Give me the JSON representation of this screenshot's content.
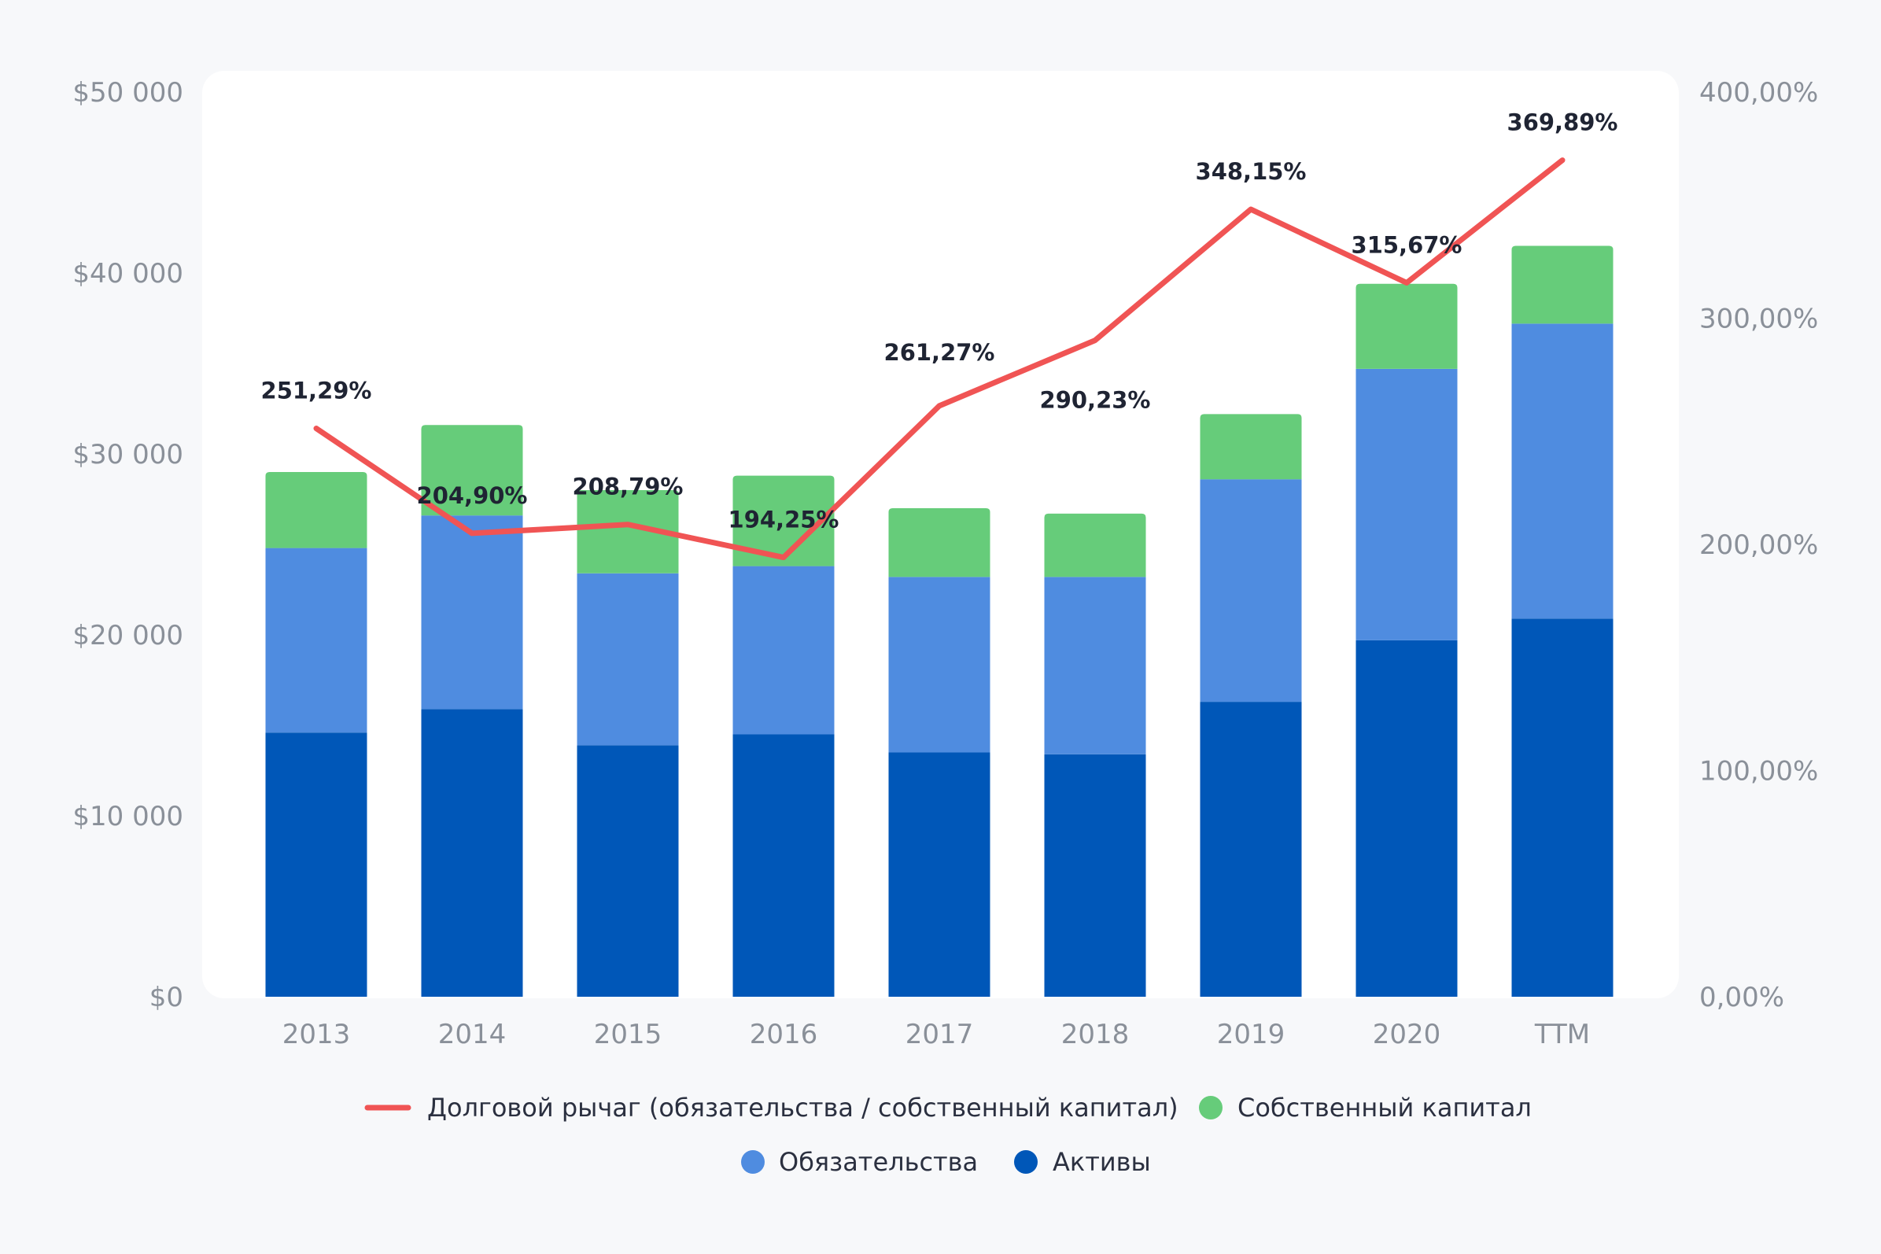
{
  "chart_data": {
    "type": "bar",
    "stacked": true,
    "categories": [
      "2013",
      "2014",
      "2015",
      "2016",
      "2017",
      "2018",
      "2019",
      "2020",
      "TTM"
    ],
    "series": [
      {
        "name": "Активы",
        "kind": "bar",
        "color": "#0057b8",
        "values": [
          14600,
          15900,
          13900,
          14500,
          13500,
          13400,
          16300,
          19700,
          20900
        ]
      },
      {
        "name": "Обязательства",
        "kind": "bar",
        "color": "#4f8ce0",
        "values": [
          10200,
          10700,
          9500,
          9300,
          9700,
          9800,
          12300,
          15000,
          16300
        ]
      },
      {
        "name": "Собственный капитал",
        "kind": "bar",
        "color": "#66cc7a",
        "values": [
          4200,
          5000,
          4600,
          5000,
          3800,
          3500,
          3600,
          4700,
          4300
        ]
      },
      {
        "name": "Долговой рычаг (обязательства / собственный капитал)",
        "kind": "line",
        "axis": "right",
        "color": "#f05454",
        "values": [
          251.29,
          204.9,
          208.79,
          194.25,
          261.27,
          290.23,
          348.15,
          315.67,
          369.89
        ],
        "labels": [
          "251,29%",
          "204,90%",
          "208,79%",
          "194,25%",
          "261,27%",
          "290,23%",
          "348,15%",
          "315,67%",
          "369,89%"
        ]
      }
    ],
    "y_left": {
      "ylim": [
        0,
        50000
      ],
      "ticks": [
        0,
        10000,
        20000,
        30000,
        40000,
        50000
      ],
      "tick_labels": [
        "$0",
        "$10 000",
        "$20 000",
        "$30 000",
        "$40 000",
        "$50 000"
      ]
    },
    "y_right": {
      "ylim": [
        0,
        400
      ],
      "ticks": [
        0,
        100,
        200,
        300,
        400
      ],
      "tick_labels": [
        "0,00%",
        "100,00%",
        "200,00%",
        "300,00%",
        "400,00%"
      ]
    },
    "grid": false,
    "legend": {
      "placement": "bottom-center",
      "order": [
        "Долговой рычаг (обязательства / собственный капитал)",
        "Собственный капитал",
        "Обязательства",
        "Активы"
      ]
    }
  }
}
